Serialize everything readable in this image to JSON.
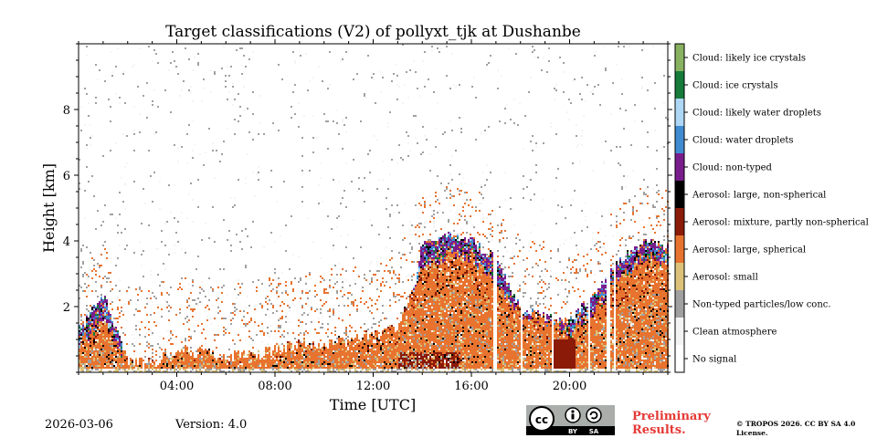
{
  "chart_data": {
    "type": "heatmap",
    "title": "Target classifications (V2) of pollyxt_tjk at Dushanbe",
    "xlabel": "Time [UTC]",
    "ylabel": "Height [km]",
    "xlim_hours": [
      0,
      24
    ],
    "ylim_km": [
      0,
      10
    ],
    "x_ticks": [
      {
        "value": 4,
        "label": "04:00"
      },
      {
        "value": 8,
        "label": "08:00"
      },
      {
        "value": 12,
        "label": "12:00"
      },
      {
        "value": 16,
        "label": "16:00"
      },
      {
        "value": 20,
        "label": "20:00"
      }
    ],
    "y_ticks": [
      {
        "value": 2,
        "label": "2"
      },
      {
        "value": 4,
        "label": "4"
      },
      {
        "value": 6,
        "label": "6"
      },
      {
        "value": 8,
        "label": "8"
      }
    ],
    "classes": [
      {
        "id": 0,
        "label": "No signal",
        "color": "#ffffff"
      },
      {
        "id": 1,
        "label": "Clean atmosphere",
        "color": "#f4f4f4"
      },
      {
        "id": 2,
        "label": "Non-typed particles/low conc.",
        "color": "#a0a0a0"
      },
      {
        "id": 3,
        "label": "Aerosol: small",
        "color": "#dcc279"
      },
      {
        "id": 4,
        "label": "Aerosol: large, spherical",
        "color": "#e8732f"
      },
      {
        "id": 5,
        "label": "Aerosol: mixture, partly non-spherical",
        "color": "#8b1a08"
      },
      {
        "id": 6,
        "label": "Aerosol: large, non-spherical",
        "color": "#000000"
      },
      {
        "id": 7,
        "label": "Cloud: non-typed",
        "color": "#7a1d8c"
      },
      {
        "id": 8,
        "label": "Cloud: water droplets",
        "color": "#3f8bd1"
      },
      {
        "id": 9,
        "label": "Cloud: likely water droplets",
        "color": "#aed7f5"
      },
      {
        "id": 10,
        "label": "Cloud: ice crystals",
        "color": "#157a3a"
      },
      {
        "id": 11,
        "label": "Cloud: likely ice crystals",
        "color": "#88b261"
      }
    ],
    "no_data_gaps_hours": [
      [
        16.85,
        16.98
      ],
      [
        17.95,
        18.05
      ],
      [
        19.25,
        19.3
      ],
      [
        20.72,
        20.78
      ],
      [
        21.5,
        21.62
      ],
      [
        21.75,
        21.82
      ]
    ],
    "profile_hours": [
      0,
      1,
      2,
      3,
      4,
      5,
      6,
      7,
      8,
      9,
      10,
      11,
      12,
      13,
      14,
      15,
      16,
      17,
      18,
      19,
      20,
      21,
      22,
      23,
      24
    ],
    "aerosol_top_km": [
      0.9,
      1.5,
      0.3,
      0.3,
      0.7,
      0.6,
      0.5,
      0.5,
      0.7,
      0.9,
      0.9,
      1.0,
      1.1,
      1.4,
      3.2,
      3.6,
      3.5,
      2.6,
      1.8,
      1.6,
      1.2,
      1.9,
      2.8,
      3.5,
      3.4
    ],
    "cloud_top_km": [
      1.3,
      2.4,
      0.2,
      0.0,
      0.0,
      0.0,
      0.0,
      0.0,
      0.0,
      0.0,
      0.0,
      0.0,
      0.0,
      0.0,
      4.0,
      4.2,
      4.0,
      3.4,
      1.9,
      1.7,
      1.6,
      2.4,
      3.4,
      4.0,
      3.8
    ]
  },
  "footer": {
    "date": "2026-03-06",
    "version": "Version: 4.0",
    "preliminary": "Preliminary Results.",
    "copyright": "© TROPOS 2026. CC BY SA 4.0 License.",
    "cc_badge": {
      "main": "cc",
      "by": "BY",
      "sa": "SA"
    }
  },
  "colors": {
    "axis": "#000000",
    "warning": "#e53935"
  }
}
